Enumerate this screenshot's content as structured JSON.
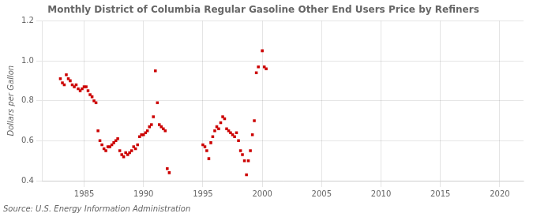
{
  "chart_data": {
    "type": "scatter",
    "title": "Monthly District of Columbia Regular Gasoline Other End Users Price by Refiners",
    "ylabel": "Dollars per Gallon",
    "source": "Source: U.S. Energy Information Administration",
    "color": "#cc0000",
    "marker": "square",
    "grid": true,
    "xlim": [
      1981.5,
      2022
    ],
    "ylim": [
      0.4,
      1.2
    ],
    "xticks": [
      1985,
      1990,
      1995,
      2000,
      2005,
      2010,
      2015,
      2020
    ],
    "yticks": [
      0.4,
      0.6,
      0.8,
      {
        "value": 1.0,
        "label": "1.0"
      },
      1.2
    ],
    "x": [
      1983.0,
      1983.17,
      1983.33,
      1983.5,
      1983.67,
      1983.83,
      1984.0,
      1984.17,
      1984.33,
      1984.5,
      1984.67,
      1984.83,
      1985.0,
      1985.17,
      1985.33,
      1985.5,
      1985.67,
      1985.83,
      1986.0,
      1986.17,
      1986.33,
      1986.5,
      1986.67,
      1986.83,
      1987.0,
      1987.17,
      1987.33,
      1987.5,
      1987.67,
      1987.83,
      1988.0,
      1988.17,
      1988.33,
      1988.5,
      1988.67,
      1988.83,
      1989.0,
      1989.17,
      1989.33,
      1989.5,
      1989.67,
      1989.83,
      1990.0,
      1990.17,
      1990.33,
      1990.5,
      1990.67,
      1990.83,
      1991.0,
      1991.17,
      1991.33,
      1991.5,
      1991.67,
      1991.83,
      1992.0,
      1992.17,
      1995.0,
      1995.17,
      1995.33,
      1995.5,
      1995.67,
      1995.83,
      1996.0,
      1996.17,
      1996.33,
      1996.5,
      1996.67,
      1996.83,
      1997.0,
      1997.17,
      1997.33,
      1997.5,
      1997.67,
      1997.83,
      1998.0,
      1998.17,
      1998.33,
      1998.5,
      1998.67,
      1998.83,
      1999.0,
      1999.17,
      1999.33,
      1999.5,
      1999.67,
      2000.0,
      2000.17,
      2000.33
    ],
    "values": [
      0.91,
      0.89,
      0.88,
      0.93,
      0.91,
      0.9,
      0.88,
      0.87,
      0.88,
      0.86,
      0.85,
      0.86,
      0.87,
      0.87,
      0.85,
      0.83,
      0.82,
      0.8,
      0.79,
      0.65,
      0.6,
      0.58,
      0.56,
      0.55,
      0.57,
      0.57,
      0.58,
      0.59,
      0.6,
      0.61,
      0.55,
      0.53,
      0.52,
      0.54,
      0.53,
      0.54,
      0.55,
      0.57,
      0.56,
      0.58,
      0.62,
      0.63,
      0.63,
      0.64,
      0.65,
      0.67,
      0.68,
      0.72,
      0.95,
      0.79,
      0.68,
      0.67,
      0.66,
      0.65,
      0.46,
      0.44,
      0.58,
      0.57,
      0.55,
      0.51,
      0.59,
      0.62,
      0.65,
      0.67,
      0.66,
      0.69,
      0.72,
      0.71,
      0.66,
      0.65,
      0.64,
      0.63,
      0.62,
      0.64,
      0.6,
      0.55,
      0.53,
      0.5,
      0.43,
      0.5,
      0.55,
      0.63,
      0.7,
      0.94,
      0.97,
      1.05,
      0.97,
      0.96
    ]
  }
}
